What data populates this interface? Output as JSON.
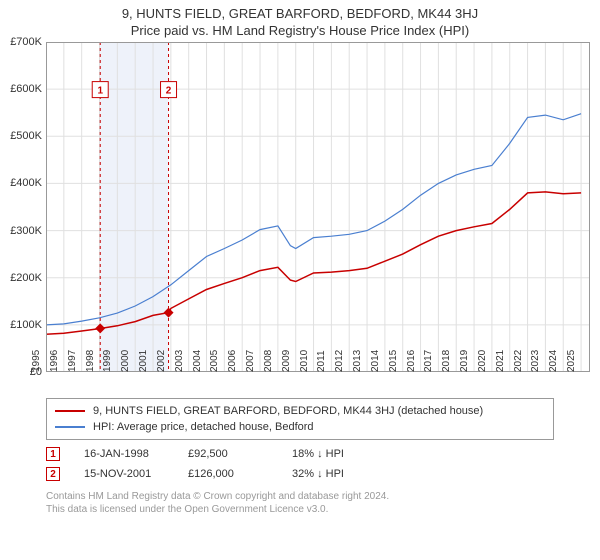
{
  "title": "9, HUNTS FIELD, GREAT BARFORD, BEDFORD, MK44 3HJ",
  "subtitle": "Price paid vs. HM Land Registry's House Price Index (HPI)",
  "chart": {
    "type": "line",
    "background_color": "#ffffff",
    "grid_color": "#e0e0e0",
    "border_color": "#999999",
    "shaded_band": {
      "x_start": 1998.04,
      "x_end": 2001.87,
      "fill": "#eef2fa"
    },
    "xlim": [
      1995,
      2025.5
    ],
    "ylim": [
      0,
      700000
    ],
    "ytick_step": 100000,
    "ytick_labels": [
      "£0",
      "£100K",
      "£200K",
      "£300K",
      "£400K",
      "£500K",
      "£600K",
      "£700K"
    ],
    "xticks": [
      1995,
      1996,
      1997,
      1998,
      1999,
      2000,
      2001,
      2002,
      2003,
      2004,
      2005,
      2006,
      2007,
      2008,
      2009,
      2010,
      2011,
      2012,
      2013,
      2014,
      2015,
      2016,
      2017,
      2018,
      2019,
      2020,
      2021,
      2022,
      2023,
      2024,
      2025
    ],
    "series": [
      {
        "name": "property_price",
        "label": "9, HUNTS FIELD, GREAT BARFORD, BEDFORD, MK44 3HJ (detached house)",
        "color": "#c80000",
        "line_width": 1.5,
        "points": [
          [
            1995,
            80000
          ],
          [
            1996,
            82000
          ],
          [
            1997,
            87000
          ],
          [
            1998,
            92000
          ],
          [
            1999,
            98000
          ],
          [
            2000,
            107000
          ],
          [
            2001,
            120000
          ],
          [
            2001.87,
            126000
          ],
          [
            2002,
            135000
          ],
          [
            2003,
            155000
          ],
          [
            2004,
            175000
          ],
          [
            2005,
            188000
          ],
          [
            2006,
            200000
          ],
          [
            2007,
            215000
          ],
          [
            2008,
            222000
          ],
          [
            2008.7,
            195000
          ],
          [
            2009,
            192000
          ],
          [
            2010,
            210000
          ],
          [
            2011,
            212000
          ],
          [
            2012,
            215000
          ],
          [
            2013,
            220000
          ],
          [
            2014,
            235000
          ],
          [
            2015,
            250000
          ],
          [
            2016,
            270000
          ],
          [
            2017,
            288000
          ],
          [
            2018,
            300000
          ],
          [
            2019,
            308000
          ],
          [
            2020,
            315000
          ],
          [
            2021,
            345000
          ],
          [
            2022,
            380000
          ],
          [
            2023,
            382000
          ],
          [
            2024,
            378000
          ],
          [
            2025,
            380000
          ]
        ]
      },
      {
        "name": "hpi",
        "label": "HPI: Average price, detached house, Bedford",
        "color": "#4a7fd0",
        "line_width": 1.2,
        "points": [
          [
            1995,
            100000
          ],
          [
            1996,
            102000
          ],
          [
            1997,
            108000
          ],
          [
            1998,
            115000
          ],
          [
            1999,
            125000
          ],
          [
            2000,
            140000
          ],
          [
            2001,
            160000
          ],
          [
            2002,
            185000
          ],
          [
            2003,
            215000
          ],
          [
            2004,
            245000
          ],
          [
            2005,
            262000
          ],
          [
            2006,
            280000
          ],
          [
            2007,
            302000
          ],
          [
            2008,
            310000
          ],
          [
            2008.7,
            268000
          ],
          [
            2009,
            262000
          ],
          [
            2010,
            285000
          ],
          [
            2011,
            288000
          ],
          [
            2012,
            292000
          ],
          [
            2013,
            300000
          ],
          [
            2014,
            320000
          ],
          [
            2015,
            345000
          ],
          [
            2016,
            375000
          ],
          [
            2017,
            400000
          ],
          [
            2018,
            418000
          ],
          [
            2019,
            430000
          ],
          [
            2020,
            438000
          ],
          [
            2021,
            485000
          ],
          [
            2022,
            540000
          ],
          [
            2023,
            545000
          ],
          [
            2024,
            535000
          ],
          [
            2025,
            548000
          ]
        ]
      }
    ],
    "markers": [
      {
        "id": "1",
        "x": 1998.04,
        "y": 92500,
        "color": "#c80000",
        "label_y": 0.88
      },
      {
        "id": "2",
        "x": 2001.87,
        "y": 126000,
        "color": "#c80000",
        "label_y": 0.88
      }
    ],
    "title_fontsize": 13,
    "label_fontsize": 11,
    "tick_fontsize": 10
  },
  "legend": {
    "items": [
      {
        "color": "#c80000",
        "label": "9, HUNTS FIELD, GREAT BARFORD, BEDFORD, MK44 3HJ (detached house)"
      },
      {
        "color": "#4a7fd0",
        "label": "HPI: Average price, detached house, Bedford"
      }
    ]
  },
  "transactions": [
    {
      "id": "1",
      "color": "#c80000",
      "date": "16-JAN-1998",
      "price": "£92,500",
      "vs_hpi": "18% ↓ HPI"
    },
    {
      "id": "2",
      "color": "#c80000",
      "date": "15-NOV-2001",
      "price": "£126,000",
      "vs_hpi": "32% ↓ HPI"
    }
  ],
  "footer": {
    "line1": "Contains HM Land Registry data © Crown copyright and database right 2024.",
    "line2": "This data is licensed under the Open Government Licence v3.0."
  }
}
